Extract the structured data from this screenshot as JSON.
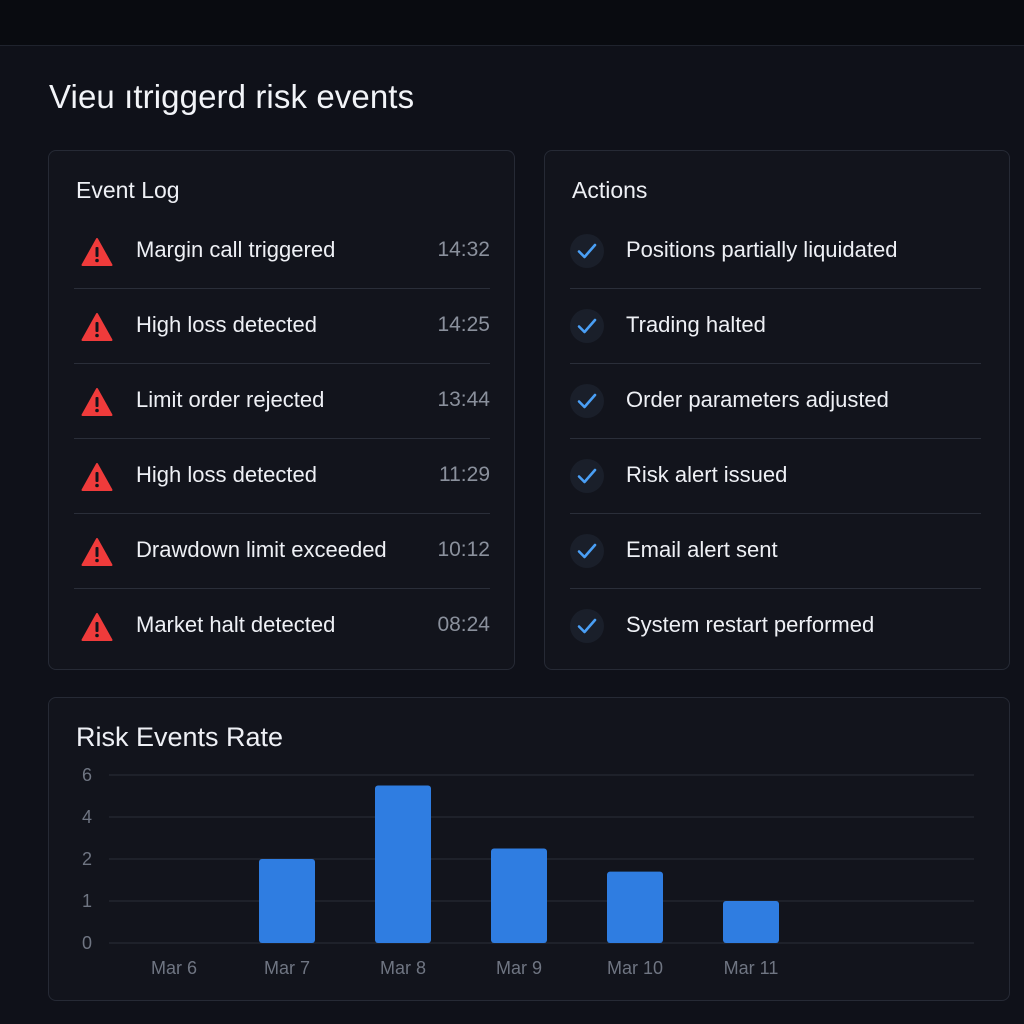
{
  "page": {
    "title": "Vieu ıtriggerd risk events"
  },
  "event_log": {
    "title": "Event Log",
    "events": [
      {
        "label": "Margin call triggered",
        "time": "14:32",
        "icon": "warning-icon"
      },
      {
        "label": "High loss detected",
        "time": "14:25",
        "icon": "warning-icon"
      },
      {
        "label": "Limit order rejected",
        "time": "13:44",
        "icon": "warning-icon"
      },
      {
        "label": "High loss detected",
        "time": "11:29",
        "icon": "warning-icon"
      },
      {
        "label": "Drawdown limit exceeded",
        "time": "10:12",
        "icon": "warning-icon"
      },
      {
        "label": "Market halt detected",
        "time": "08:24",
        "icon": "warning-icon"
      }
    ]
  },
  "actions": {
    "title": "Actions",
    "items": [
      {
        "label": "Positions partially liquidated",
        "icon": "check-icon"
      },
      {
        "label": "Trading halted",
        "icon": "check-icon"
      },
      {
        "label": "Order parameters adjusted",
        "icon": "check-icon"
      },
      {
        "label": "Risk alert issued",
        "icon": "check-icon"
      },
      {
        "label": "Email alert sent",
        "icon": "check-icon"
      },
      {
        "label": "System restart performed",
        "icon": "check-icon"
      }
    ]
  },
  "chart_panel": {
    "title": "Risk Events Rate"
  },
  "colors": {
    "warning": "#ef3b3b",
    "check": "#4a9ff5",
    "bar": "#2f7de1",
    "gridline": "#2a2e39"
  },
  "chart_data": {
    "type": "bar",
    "title": "Risk Events Rate",
    "categories": [
      "Mar 6",
      "Mar 7",
      "Mar 8",
      "Mar 9",
      "Mar 10",
      "Mar 11"
    ],
    "values": [
      0,
      2,
      5.5,
      2.5,
      1.7,
      1
    ],
    "y_ticks": [
      "0",
      "1",
      "2",
      "4",
      "6"
    ],
    "y_axis_note": "tick labels are unevenly spaced on equally spaced gridlines (0, 1, 2, 4, 6)",
    "ylim": [
      0,
      6
    ],
    "grid": true,
    "legend": "none",
    "xlabel": "",
    "ylabel": ""
  }
}
